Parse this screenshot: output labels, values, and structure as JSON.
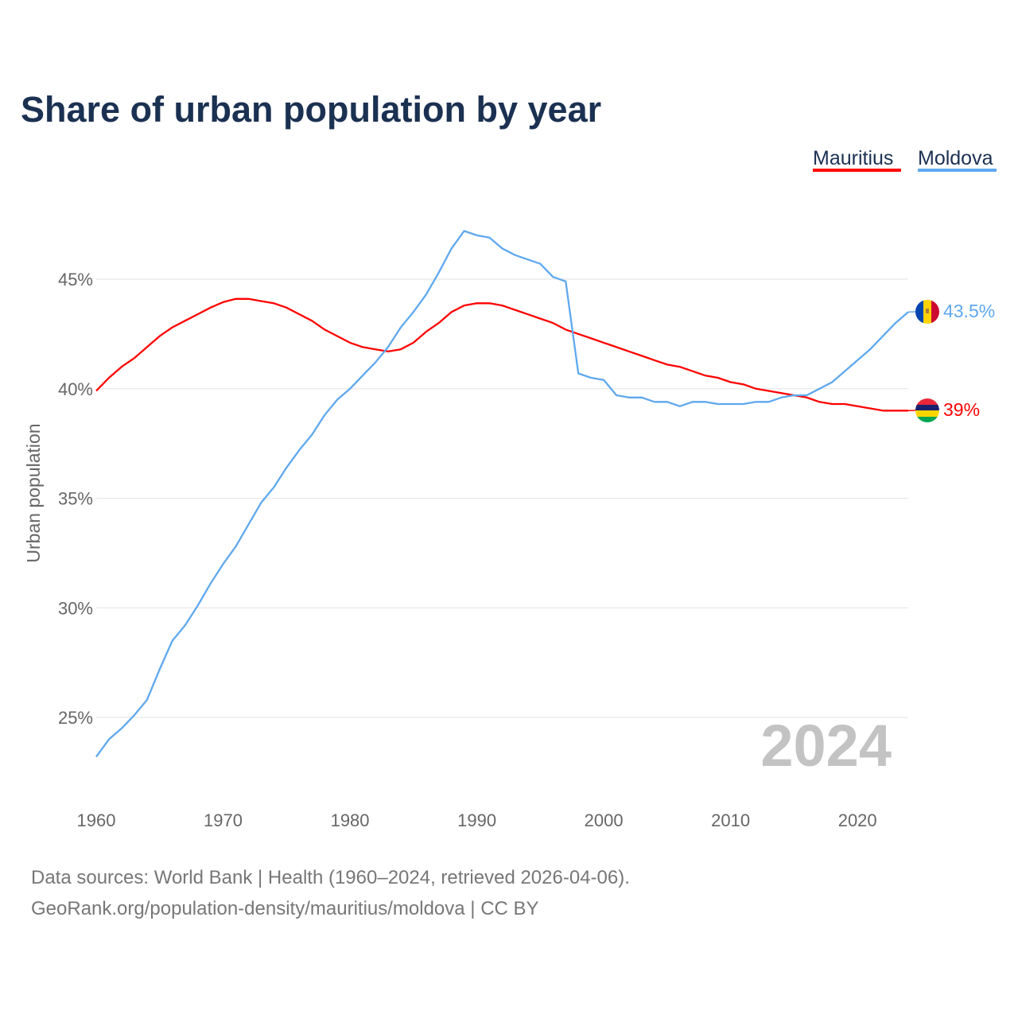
{
  "chart_data": {
    "type": "line",
    "title": "Share of urban population by year",
    "xlabel": "",
    "ylabel": "Urban population",
    "ylim": [
      22.5,
      48.5
    ],
    "xlim": [
      1960,
      2024
    ],
    "yticks": [
      25,
      30,
      35,
      40,
      45
    ],
    "ytick_labels": [
      "25%",
      "30%",
      "35%",
      "40%",
      "45%"
    ],
    "xticks": [
      1960,
      1970,
      1980,
      1990,
      2000,
      2010,
      2020
    ],
    "xtick_labels": [
      "1960",
      "1970",
      "1980",
      "1990",
      "2000",
      "2010",
      "2020"
    ],
    "grid": true,
    "legend_placement": "top-right",
    "year_label": "2024",
    "x": [
      1960,
      1961,
      1962,
      1963,
      1964,
      1965,
      1966,
      1967,
      1968,
      1969,
      1970,
      1971,
      1972,
      1973,
      1974,
      1975,
      1976,
      1977,
      1978,
      1979,
      1980,
      1981,
      1982,
      1983,
      1984,
      1985,
      1986,
      1987,
      1988,
      1989,
      1990,
      1991,
      1992,
      1993,
      1994,
      1995,
      1996,
      1997,
      1998,
      1999,
      2000,
      2001,
      2002,
      2003,
      2004,
      2005,
      2006,
      2007,
      2008,
      2009,
      2010,
      2011,
      2012,
      2013,
      2014,
      2015,
      2016,
      2017,
      2018,
      2019,
      2020,
      2021,
      2022,
      2023,
      2024
    ],
    "series": [
      {
        "name": "Mauritius",
        "color": "#ff0000",
        "end_label": "39%",
        "values": [
          39.9,
          40.5,
          41.0,
          41.4,
          41.9,
          42.4,
          42.8,
          43.1,
          43.4,
          43.7,
          43.95,
          44.1,
          44.1,
          44.0,
          43.9,
          43.7,
          43.4,
          43.1,
          42.7,
          42.4,
          42.1,
          41.9,
          41.8,
          41.7,
          41.8,
          42.1,
          42.6,
          43.0,
          43.5,
          43.8,
          43.9,
          43.9,
          43.8,
          43.6,
          43.4,
          43.2,
          43.0,
          42.7,
          42.5,
          42.3,
          42.1,
          41.9,
          41.7,
          41.5,
          41.3,
          41.1,
          41.0,
          40.8,
          40.6,
          40.5,
          40.3,
          40.2,
          40.0,
          39.9,
          39.8,
          39.7,
          39.6,
          39.4,
          39.3,
          39.3,
          39.2,
          39.1,
          39.0,
          39.0,
          39.0
        ]
      },
      {
        "name": "Moldova",
        "color": "#5fa8ee",
        "end_label": "43.5%",
        "values": [
          23.2,
          24.0,
          24.5,
          25.1,
          25.8,
          27.2,
          28.5,
          29.2,
          30.1,
          31.1,
          32.0,
          32.8,
          33.8,
          34.8,
          35.5,
          36.4,
          37.2,
          37.9,
          38.8,
          39.5,
          40.0,
          40.6,
          41.2,
          41.9,
          42.8,
          43.5,
          44.3,
          45.3,
          46.4,
          47.2,
          47.0,
          46.9,
          46.4,
          46.1,
          45.9,
          45.7,
          45.1,
          44.9,
          40.7,
          40.5,
          40.4,
          39.7,
          39.6,
          39.6,
          39.4,
          39.4,
          39.2,
          39.4,
          39.4,
          39.3,
          39.3,
          39.3,
          39.4,
          39.4,
          39.6,
          39.7,
          39.7,
          40.0,
          40.3,
          40.8,
          41.3,
          41.8,
          42.4,
          43.0,
          43.5
        ]
      }
    ]
  },
  "footer": {
    "line1": "Data sources: World Bank | Health (1960–2024, retrieved 2026-04-06).",
    "line2": "GeoRank.org/population-density/mauritius/moldova | CC BY"
  }
}
